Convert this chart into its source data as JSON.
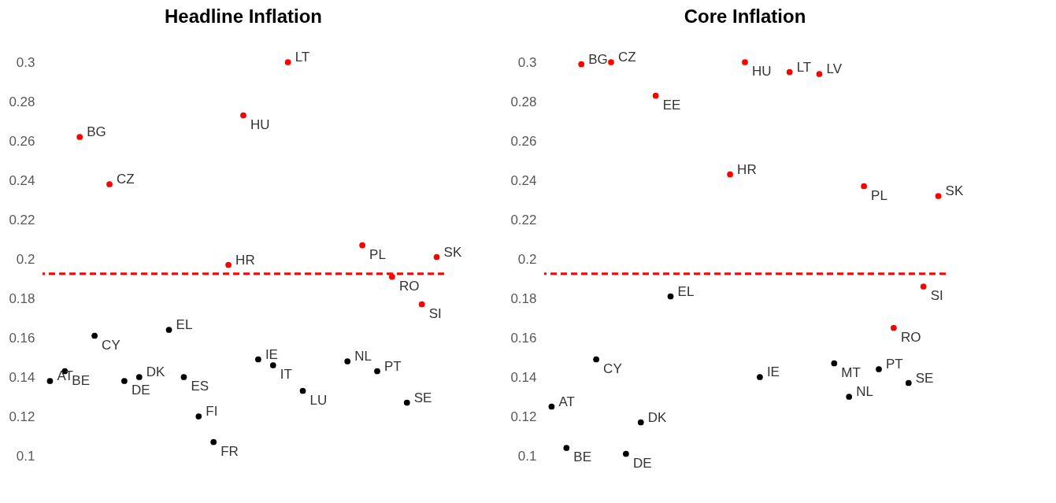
{
  "chart_data": [
    {
      "type": "scatter",
      "title": "Headline Inflation",
      "marker": "circle",
      "grid": false,
      "categories": [
        null,
        null,
        null,
        null,
        null,
        null,
        null,
        null,
        null,
        null,
        null,
        null,
        null,
        null,
        null,
        null,
        null,
        null,
        null,
        null,
        null,
        null,
        null,
        null,
        null,
        null,
        null
      ],
      "ylim": [
        0.1,
        0.3
      ],
      "yticks": [
        0.1,
        0.12,
        0.14,
        0.16,
        0.18,
        0.2,
        0.22,
        0.24,
        0.26,
        0.28,
        0.3
      ],
      "series": [
        {
          "color": "#ff0000",
          "values": [
            null,
            null,
            0.262,
            null,
            0.238,
            null,
            null,
            null,
            null,
            null,
            null,
            null,
            0.197,
            0.273,
            null,
            null,
            0.3,
            null,
            null,
            null,
            null,
            0.207,
            null,
            0.191,
            null,
            0.177,
            0.201
          ],
          "value_labels": [
            null,
            null,
            "BG",
            null,
            "CZ",
            null,
            null,
            null,
            null,
            null,
            null,
            null,
            "HR",
            "HU",
            null,
            null,
            "LT",
            null,
            null,
            null,
            null,
            "PL",
            null,
            "RO",
            null,
            "SI",
            "SK"
          ]
        },
        {
          "color": "#000000",
          "values": [
            0.138,
            0.143,
            null,
            0.161,
            null,
            0.138,
            0.14,
            null,
            0.164,
            0.14,
            0.12,
            0.107,
            null,
            null,
            0.149,
            0.146,
            null,
            0.133,
            null,
            null,
            0.148,
            null,
            0.143,
            null,
            0.127,
            null,
            null
          ],
          "value_labels": [
            "AT",
            "BE",
            null,
            "CY",
            null,
            "DE",
            "DK",
            null,
            "EL",
            "ES",
            "FI",
            "FR",
            null,
            null,
            "IE",
            "IT",
            null,
            "LU",
            null,
            null,
            "NL",
            null,
            "PT",
            null,
            "SE",
            null,
            null
          ]
        }
      ],
      "ref_lines": [
        {
          "axis": "y",
          "value": 0.1925,
          "color": "#ff0000",
          "line_style": "dashed"
        }
      ]
    },
    {
      "type": "scatter",
      "title": "Core Inflation",
      "marker": "circle",
      "grid": false,
      "categories": [
        null,
        null,
        null,
        null,
        null,
        null,
        null,
        null,
        null,
        null,
        null,
        null,
        null,
        null,
        null,
        null,
        null,
        null,
        null,
        null,
        null,
        null,
        null,
        null,
        null,
        null,
        null
      ],
      "ylim": [
        0.1,
        0.3
      ],
      "yticks": [
        0.1,
        0.12,
        0.14,
        0.16,
        0.18,
        0.2,
        0.22,
        0.24,
        0.26,
        0.28,
        0.3
      ],
      "series": [
        {
          "color": "#ff0000",
          "values": [
            null,
            null,
            0.299,
            null,
            0.3,
            null,
            null,
            0.283,
            null,
            null,
            null,
            null,
            0.243,
            0.3,
            null,
            null,
            0.295,
            null,
            0.294,
            null,
            null,
            0.237,
            null,
            0.165,
            null,
            0.186,
            0.232
          ],
          "value_labels": [
            null,
            null,
            "BG",
            null,
            "CZ",
            null,
            null,
            "EE",
            null,
            null,
            null,
            null,
            "HR",
            "HU",
            null,
            null,
            "LT",
            null,
            "LV",
            null,
            null,
            "PL",
            null,
            "RO",
            null,
            "SI",
            "SK"
          ]
        },
        {
          "color": "#000000",
          "values": [
            0.125,
            0.104,
            null,
            0.149,
            null,
            0.101,
            0.117,
            null,
            0.181,
            null,
            null,
            null,
            null,
            null,
            0.14,
            null,
            null,
            null,
            null,
            0.147,
            0.13,
            null,
            0.144,
            null,
            0.137,
            null,
            null
          ],
          "value_labels": [
            "AT",
            "BE",
            null,
            "CY",
            null,
            "DE",
            "DK",
            null,
            "EL",
            null,
            null,
            null,
            null,
            null,
            "IE",
            null,
            null,
            null,
            null,
            "MT",
            "NL",
            null,
            "PT",
            null,
            "SE",
            null,
            null
          ]
        }
      ],
      "ref_lines": [
        {
          "axis": "y",
          "value": 0.1925,
          "color": "#ff0000",
          "line_style": "dashed"
        }
      ]
    }
  ]
}
